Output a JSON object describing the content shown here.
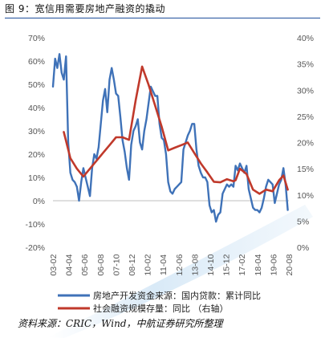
{
  "figure_title": "图 9：宽信用需要房地产融资的撬动",
  "source": "资料来源：CRIC，Wind，中航证券研究所整理",
  "chart_data": {
    "type": "line",
    "x_ticks": [
      "03-02",
      "04-04",
      "05-06",
      "06-08",
      "07-10",
      "08-12",
      "10-02",
      "11-04",
      "12-06",
      "13-08",
      "14-10",
      "15-12",
      "17-02",
      "18-04",
      "19-06",
      "20-08"
    ],
    "y_left": {
      "min": -20,
      "max": 70,
      "step": 10,
      "unit": "%"
    },
    "y_right": {
      "min": 0,
      "max": 40,
      "step": 5,
      "unit": "%"
    },
    "grid": false,
    "legend_position": "bottom",
    "series": [
      {
        "name": "房地产开发资金来源：国内贷款：累计同比",
        "axis": "left",
        "color": "#3f72b8",
        "points": [
          [
            "2003-02",
            49
          ],
          [
            "2003-04",
            61
          ],
          [
            "2003-06",
            57
          ],
          [
            "2003-08",
            63
          ],
          [
            "2003-10",
            55
          ],
          [
            "2003-12",
            52
          ],
          [
            "2004-02",
            62
          ],
          [
            "2004-04",
            25
          ],
          [
            "2004-06",
            12
          ],
          [
            "2004-08",
            9
          ],
          [
            "2004-10",
            8
          ],
          [
            "2004-12",
            6
          ],
          [
            "2005-02",
            0
          ],
          [
            "2005-04",
            8
          ],
          [
            "2005-06",
            14
          ],
          [
            "2005-08",
            10
          ],
          [
            "2005-10",
            6
          ],
          [
            "2005-12",
            2
          ],
          [
            "2006-02",
            14
          ],
          [
            "2006-04",
            20
          ],
          [
            "2006-06",
            18
          ],
          [
            "2006-08",
            23
          ],
          [
            "2006-10",
            33
          ],
          [
            "2006-12",
            43
          ],
          [
            "2007-02",
            48
          ],
          [
            "2007-04",
            38
          ],
          [
            "2007-06",
            52
          ],
          [
            "2007-08",
            57
          ],
          [
            "2007-10",
            52
          ],
          [
            "2007-12",
            46
          ],
          [
            "2008-02",
            45
          ],
          [
            "2008-04",
            36
          ],
          [
            "2008-06",
            26
          ],
          [
            "2008-08",
            21
          ],
          [
            "2008-10",
            14
          ],
          [
            "2008-12",
            9
          ],
          [
            "2009-02",
            24
          ],
          [
            "2009-04",
            30
          ],
          [
            "2009-06",
            32
          ],
          [
            "2009-08",
            35
          ],
          [
            "2009-10",
            25
          ],
          [
            "2009-12",
            22
          ],
          [
            "2010-02",
            30
          ],
          [
            "2010-04",
            35
          ],
          [
            "2010-06",
            42
          ],
          [
            "2010-08",
            49
          ],
          [
            "2010-10",
            47
          ],
          [
            "2010-12",
            45
          ],
          [
            "2011-02",
            45
          ],
          [
            "2011-04",
            33
          ],
          [
            "2011-06",
            27
          ],
          [
            "2011-08",
            26
          ],
          [
            "2011-10",
            20
          ],
          [
            "2011-12",
            8
          ],
          [
            "2012-02",
            4
          ],
          [
            "2012-04",
            3
          ],
          [
            "2012-06",
            5
          ],
          [
            "2012-08",
            6
          ],
          [
            "2012-10",
            7
          ],
          [
            "2012-12",
            8
          ],
          [
            "2013-02",
            22
          ],
          [
            "2013-04",
            25
          ],
          [
            "2013-06",
            28
          ],
          [
            "2013-08",
            30
          ],
          [
            "2013-10",
            33
          ],
          [
            "2013-12",
            33
          ],
          [
            "2014-02",
            22
          ],
          [
            "2014-04",
            15
          ],
          [
            "2014-06",
            12
          ],
          [
            "2014-08",
            10
          ],
          [
            "2014-10",
            10
          ],
          [
            "2014-12",
            8
          ],
          [
            "2015-02",
            -2
          ],
          [
            "2015-04",
            -5
          ],
          [
            "2015-06",
            -4
          ],
          [
            "2015-08",
            -9
          ],
          [
            "2015-10",
            -6
          ],
          [
            "2015-12",
            -5
          ],
          [
            "2016-02",
            3
          ],
          [
            "2016-04",
            5
          ],
          [
            "2016-06",
            7
          ],
          [
            "2016-08",
            6
          ],
          [
            "2016-10",
            7
          ],
          [
            "2016-12",
            6
          ],
          [
            "2017-02",
            15
          ],
          [
            "2017-04",
            13
          ],
          [
            "2017-06",
            16
          ],
          [
            "2017-08",
            14
          ],
          [
            "2017-10",
            12
          ],
          [
            "2017-12",
            15
          ],
          [
            "2018-02",
            5
          ],
          [
            "2018-04",
            1
          ],
          [
            "2018-06",
            -3
          ],
          [
            "2018-08",
            -4
          ],
          [
            "2018-10",
            -4
          ],
          [
            "2018-12",
            -5
          ],
          [
            "2019-02",
            -3
          ],
          [
            "2019-04",
            1
          ],
          [
            "2019-06",
            6
          ],
          [
            "2019-08",
            9
          ],
          [
            "2019-10",
            8
          ],
          [
            "2019-12",
            7
          ],
          [
            "2020-02",
            -1
          ],
          [
            "2020-04",
            3
          ],
          [
            "2020-06",
            7
          ],
          [
            "2020-08",
            9
          ],
          [
            "2020-10",
            14
          ],
          [
            "2020-12",
            7
          ],
          [
            "2021-02",
            -4
          ]
        ]
      },
      {
        "name": "社会融资规模存量：同比 （右轴）",
        "axis": "right",
        "color": "#c0392b",
        "points": [
          [
            "2003-12",
            22
          ],
          [
            "2004-06",
            17
          ],
          [
            "2004-12",
            15
          ],
          [
            "2005-06",
            13.5
          ],
          [
            "2005-12",
            15
          ],
          [
            "2006-06",
            16.5
          ],
          [
            "2006-12",
            18
          ],
          [
            "2007-06",
            19.5
          ],
          [
            "2007-12",
            21
          ],
          [
            "2008-06",
            21
          ],
          [
            "2008-12",
            20.5
          ],
          [
            "2009-06",
            28
          ],
          [
            "2009-12",
            34.5
          ],
          [
            "2010-06",
            31
          ],
          [
            "2010-12",
            27
          ],
          [
            "2011-06",
            23
          ],
          [
            "2011-12",
            18.5
          ],
          [
            "2012-06",
            19
          ],
          [
            "2012-12",
            19.5
          ],
          [
            "2013-06",
            20
          ],
          [
            "2013-12",
            18
          ],
          [
            "2014-06",
            16
          ],
          [
            "2014-12",
            14.3
          ],
          [
            "2015-06",
            12.5
          ],
          [
            "2015-12",
            12.4
          ],
          [
            "2016-06",
            13
          ],
          [
            "2016-12",
            12.6
          ],
          [
            "2017-02",
            12.8
          ],
          [
            "2017-06",
            15
          ],
          [
            "2017-12",
            14
          ],
          [
            "2018-06",
            11
          ],
          [
            "2018-12",
            10.2
          ],
          [
            "2019-06",
            11
          ],
          [
            "2019-12",
            10.7
          ],
          [
            "2020-06",
            12.8
          ],
          [
            "2020-10",
            13.7
          ],
          [
            "2021-02",
            11
          ]
        ]
      }
    ]
  }
}
